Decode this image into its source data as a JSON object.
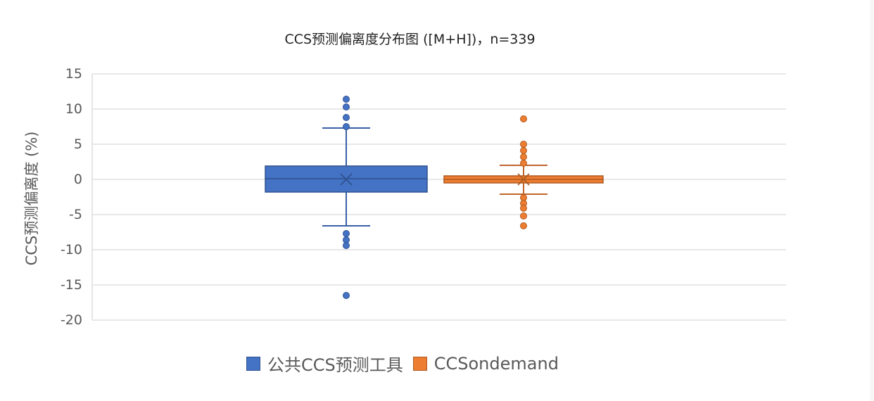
{
  "chart_data": {
    "type": "box",
    "title": "CCS预测偏离度分布图 ([M+H])，n=339",
    "xlabel": "",
    "ylabel": "CCS预测偏离度 (%)",
    "ylim": [
      -20,
      15
    ],
    "yticks": [
      15,
      10,
      5,
      0,
      -5,
      -10,
      -15,
      -20
    ],
    "grid": true,
    "legend_position": "bottom",
    "series": [
      {
        "name": "公共CCS预测工具",
        "color": "#4472C4",
        "q1": -1.8,
        "median": 0.1,
        "q3": 1.9,
        "mean": 0.0,
        "whisker_low": -6.6,
        "whisker_high": 7.3,
        "outliers": [
          11.4,
          10.3,
          8.8,
          7.5,
          -7.7,
          -8.6,
          -9.4,
          -16.5
        ]
      },
      {
        "name": "CCSondemand",
        "color": "#ED7D31",
        "q1": -0.5,
        "median": 0.0,
        "q3": 0.5,
        "mean": 0.0,
        "whisker_low": -2.1,
        "whisker_high": 2.0,
        "outliers": [
          8.6,
          5.0,
          4.1,
          3.2,
          2.3,
          -2.6,
          -3.4,
          -4.1,
          -5.2,
          -6.6
        ]
      }
    ]
  },
  "legend": {
    "items": [
      {
        "label": "公共CCS预测工具",
        "color": "#4472C4"
      },
      {
        "label": "CCSondemand",
        "color": "#ED7D31"
      }
    ]
  }
}
